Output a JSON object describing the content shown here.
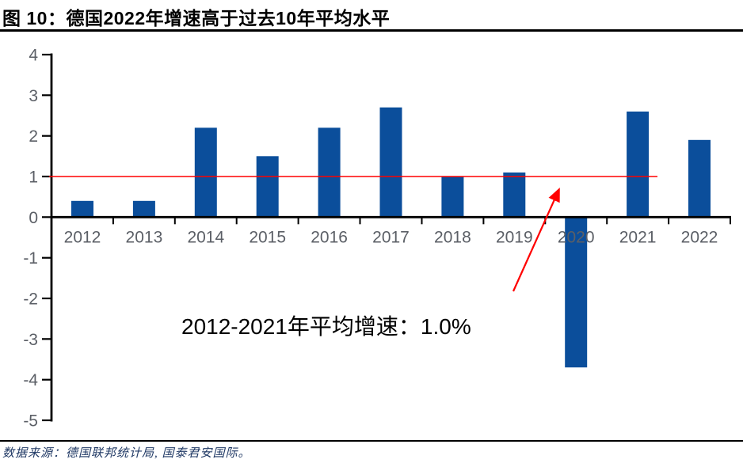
{
  "chart_data": {
    "type": "bar",
    "title": "图 10：德国2022年增速高于过去10年平均水平",
    "categories": [
      "2012",
      "2013",
      "2014",
      "2015",
      "2016",
      "2017",
      "2018",
      "2019",
      "2020",
      "2021",
      "2022"
    ],
    "values": [
      0.4,
      0.4,
      2.2,
      1.5,
      2.2,
      2.7,
      1.0,
      1.1,
      -3.7,
      2.6,
      1.9
    ],
    "xlabel": "",
    "ylabel": "",
    "ylim": [
      -5,
      4
    ],
    "yticks": [
      4,
      3,
      2,
      1,
      0,
      -1,
      -2,
      -3,
      -4,
      -5
    ],
    "grid": false,
    "legend": "none",
    "reference_line": {
      "value": 1.0
    },
    "annotation": {
      "text": "2012-2021年平均增速：1.0%"
    },
    "colors": {
      "bar": "#0B4E9B",
      "axis": "#000000",
      "tick_label": "#5B5F66",
      "reference_line": "#FF0000",
      "arrow": "#FF0000",
      "annotation_text": "#000000"
    }
  },
  "footer": {
    "source": "数据来源：德国联邦统计局, 国泰君安国际。"
  }
}
